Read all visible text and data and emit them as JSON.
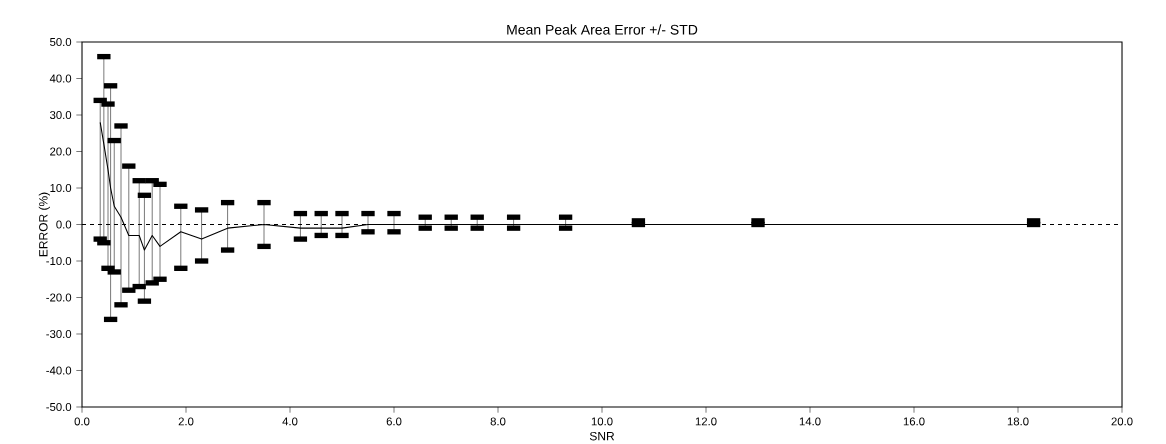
{
  "chart_data": {
    "type": "line",
    "title": "Mean Peak Area Error +/- STD",
    "xlabel": "SNR",
    "ylabel": "ERROR (%)",
    "x": [
      0.35,
      0.42,
      0.5,
      0.55,
      0.62,
      0.75,
      0.9,
      1.1,
      1.2,
      1.35,
      1.5,
      1.9,
      2.3,
      2.8,
      3.5,
      4.2,
      4.6,
      5.0,
      5.5,
      6.0,
      6.6,
      7.1,
      7.6,
      8.3,
      9.3,
      10.7,
      13.0,
      18.3
    ],
    "series": [
      {
        "color": "#000000",
        "values": [
          28,
          22,
          15,
          10,
          5,
          2,
          -3,
          -3,
          -7,
          -3,
          -6,
          -2,
          -4,
          -1,
          0,
          -1,
          -1,
          -1,
          0,
          0,
          0,
          0,
          0,
          0,
          0,
          0,
          0,
          0
        ],
        "errors": [
          [
            -4,
            34
          ],
          [
            -5,
            46
          ],
          [
            -12,
            33
          ],
          [
            -26,
            38
          ],
          [
            -13,
            23
          ],
          [
            -22,
            27
          ],
          [
            -18,
            16
          ],
          [
            -17,
            12
          ],
          [
            -21,
            8
          ],
          [
            -16,
            12
          ],
          [
            -15,
            11
          ],
          [
            -12,
            5
          ],
          [
            -10,
            4
          ],
          [
            -7,
            6
          ],
          [
            -6,
            6
          ],
          [
            -4,
            3
          ],
          [
            -3,
            3
          ],
          [
            -3,
            3
          ],
          [
            -2,
            3
          ],
          [
            -2,
            3
          ],
          [
            -1,
            2
          ],
          [
            -1,
            2
          ],
          [
            -1,
            2
          ],
          [
            -1,
            2
          ],
          [
            -1,
            2
          ],
          [
            0,
            1
          ],
          [
            0,
            1
          ],
          [
            0,
            1
          ]
        ]
      }
    ],
    "xlim": [
      0,
      20
    ],
    "ylim": [
      -50,
      50
    ],
    "xticks": [
      {
        "value": 0,
        "label": "0.0"
      },
      {
        "value": 2,
        "label": "2.0"
      },
      {
        "value": 4,
        "label": "4.0"
      },
      {
        "value": 6,
        "label": "6.0"
      },
      {
        "value": 8,
        "label": "8.0"
      },
      {
        "value": 10,
        "label": "10.0"
      },
      {
        "value": 12,
        "label": "12.0"
      },
      {
        "value": 14,
        "label": "14.0"
      },
      {
        "value": 16,
        "label": "16.0"
      },
      {
        "value": 18,
        "label": "18.0"
      },
      {
        "value": 20,
        "label": "20.0"
      }
    ],
    "yticks": [
      {
        "value": -50,
        "label": "-50.0"
      },
      {
        "value": -40,
        "label": "-40.0"
      },
      {
        "value": -30,
        "label": "-30.0"
      },
      {
        "value": -20,
        "label": "-20.0"
      },
      {
        "value": -10,
        "label": "-10.0"
      },
      {
        "value": 0,
        "label": "0.0"
      },
      {
        "value": 10,
        "label": "10.0"
      },
      {
        "value": 20,
        "label": "20.0"
      },
      {
        "value": 30,
        "label": "30.0"
      },
      {
        "value": 40,
        "label": "40.0"
      },
      {
        "value": 50,
        "label": "50.0"
      }
    ],
    "ref_lines": [
      {
        "axis": "y",
        "value": 0,
        "line_style": "dashed",
        "color": "#000000"
      }
    ],
    "marker": "none",
    "line_style": "solid"
  }
}
